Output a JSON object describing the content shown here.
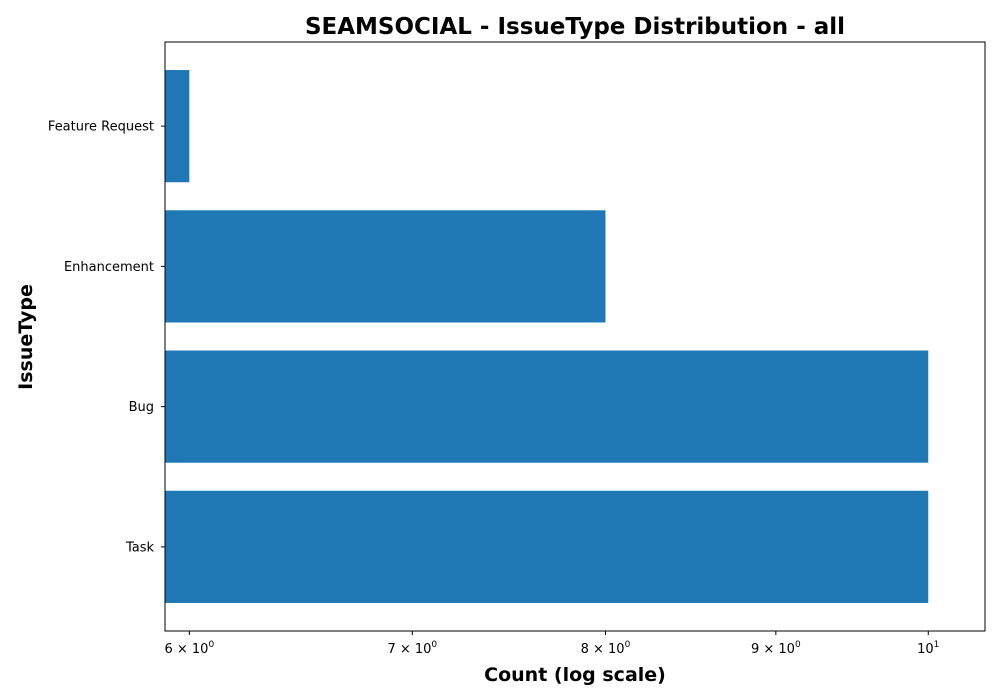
{
  "chart_data": {
    "type": "bar",
    "orientation": "horizontal",
    "title": "SEAMSOCIAL - IssueType Distribution - all",
    "xlabel": "Count (log scale)",
    "ylabel": "IssueType",
    "x_scale": "log",
    "xlim": [
      5.9,
      10.4
    ],
    "categories": [
      "Task",
      "Bug",
      "Enhancement",
      "Feature Request"
    ],
    "values": [
      10,
      10,
      8,
      6
    ],
    "x_ticks": [
      {
        "value": 6,
        "base": "6 × 10",
        "exp": "0"
      },
      {
        "value": 7,
        "base": "7 × 10",
        "exp": "0"
      },
      {
        "value": 8,
        "base": "8 × 10",
        "exp": "0"
      },
      {
        "value": 9,
        "base": "9 × 10",
        "exp": "0"
      },
      {
        "value": 10,
        "base": "10",
        "exp": "1"
      }
    ],
    "bar_color": "#1f77b4",
    "grid": false,
    "legend": "none"
  }
}
